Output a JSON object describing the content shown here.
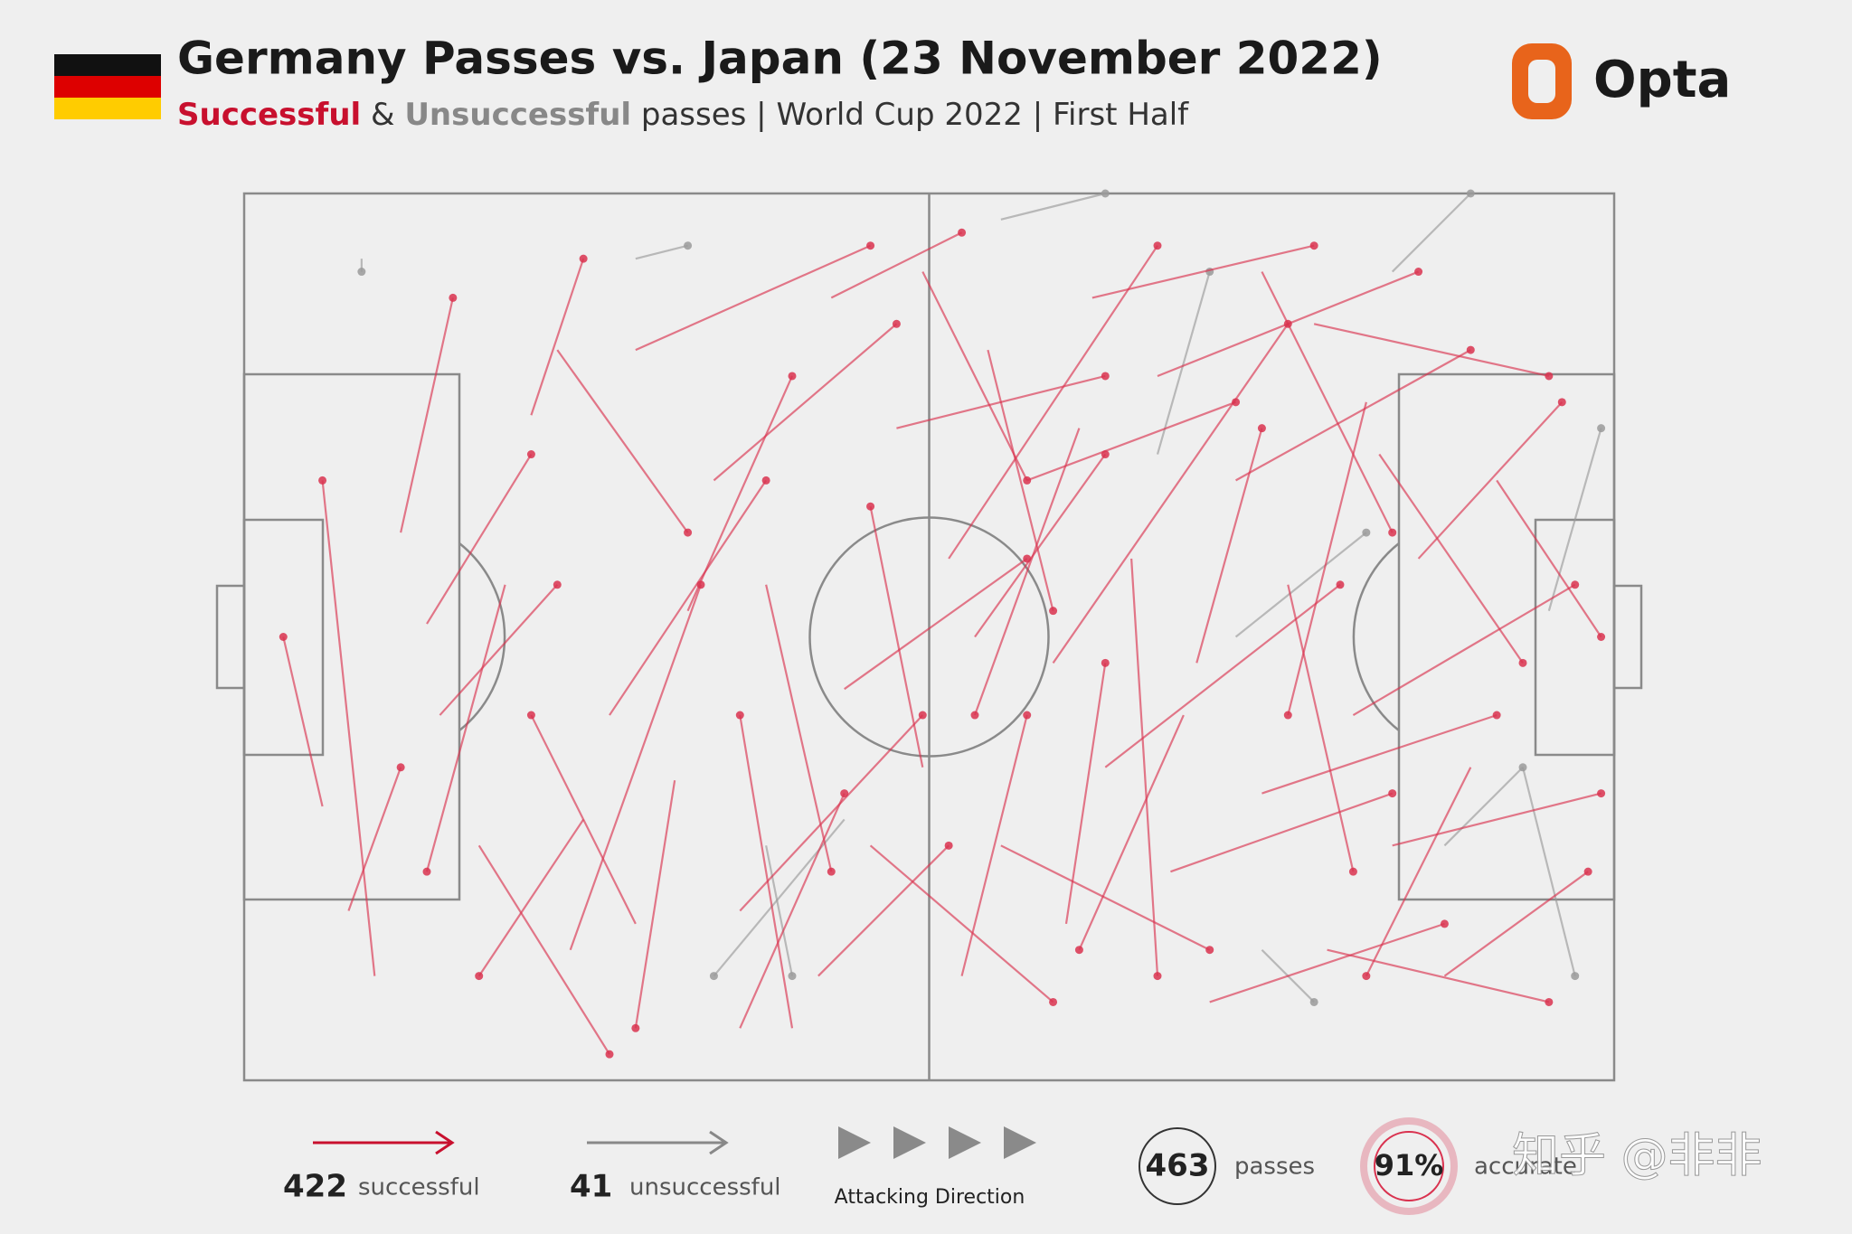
{
  "header": {
    "title": "Germany Passes vs. Japan (23 November 2022)",
    "subtitle_successful": "Successful",
    "subtitle_and": "&",
    "subtitle_unsuccessful": "Unsuccessful",
    "subtitle_rest": "passes | World Cup 2022 | First Half",
    "brand": "Opta"
  },
  "passes": {
    "successful_color": "#d9324f",
    "unsuccessful_color": "#9a9a9a",
    "successful": [
      [
        6,
        47,
        3,
        34
      ],
      [
        8,
        55,
        12,
        44
      ],
      [
        12,
        26,
        16,
        8
      ],
      [
        14,
        33,
        22,
        20
      ],
      [
        10,
        60,
        6,
        22
      ],
      [
        18,
        50,
        28,
        66
      ],
      [
        22,
        17,
        26,
        5
      ],
      [
        25,
        58,
        35,
        30
      ],
      [
        28,
        40,
        40,
        22
      ],
      [
        30,
        12,
        48,
        4
      ],
      [
        33,
        45,
        30,
        64
      ],
      [
        36,
        22,
        50,
        10
      ],
      [
        38,
        55,
        52,
        40
      ],
      [
        40,
        30,
        45,
        52
      ],
      [
        42,
        64,
        38,
        40
      ],
      [
        45,
        8,
        55,
        3
      ],
      [
        46,
        38,
        60,
        28
      ],
      [
        48,
        50,
        62,
        62
      ],
      [
        50,
        18,
        66,
        14
      ],
      [
        52,
        44,
        48,
        24
      ],
      [
        54,
        28,
        70,
        4
      ],
      [
        55,
        60,
        60,
        40
      ],
      [
        57,
        12,
        62,
        32
      ],
      [
        58,
        50,
        74,
        58
      ],
      [
        60,
        22,
        76,
        16
      ],
      [
        62,
        36,
        80,
        10
      ],
      [
        63,
        56,
        66,
        36
      ],
      [
        65,
        8,
        82,
        4
      ],
      [
        66,
        44,
        84,
        30
      ],
      [
        68,
        28,
        70,
        60
      ],
      [
        70,
        14,
        90,
        6
      ],
      [
        71,
        52,
        88,
        46
      ],
      [
        73,
        36,
        78,
        18
      ],
      [
        74,
        62,
        92,
        56
      ],
      [
        76,
        22,
        94,
        12
      ],
      [
        78,
        46,
        96,
        40
      ],
      [
        80,
        30,
        85,
        52
      ],
      [
        82,
        10,
        100,
        14
      ],
      [
        83,
        58,
        100,
        62
      ],
      [
        85,
        40,
        102,
        30
      ],
      [
        87,
        20,
        98,
        36
      ],
      [
        88,
        50,
        104,
        46
      ],
      [
        90,
        28,
        101,
        16
      ],
      [
        92,
        60,
        103,
        52
      ],
      [
        15,
        40,
        24,
        30
      ],
      [
        20,
        30,
        14,
        52
      ],
      [
        26,
        48,
        18,
        60
      ],
      [
        34,
        32,
        42,
        14
      ],
      [
        44,
        60,
        54,
        50
      ],
      [
        56,
        34,
        66,
        20
      ],
      [
        64,
        18,
        56,
        40
      ],
      [
        72,
        40,
        64,
        58
      ],
      [
        86,
        16,
        80,
        40
      ],
      [
        94,
        44,
        86,
        60
      ],
      [
        24,
        12,
        34,
        26
      ],
      [
        38,
        64,
        46,
        46
      ],
      [
        52,
        6,
        60,
        22
      ],
      [
        78,
        6,
        88,
        26
      ],
      [
        96,
        22,
        104,
        34
      ],
      [
        30,
        56,
        22,
        40
      ]
    ],
    "unsuccessful": [
      [
        9,
        5,
        9,
        6
      ],
      [
        30,
        5,
        34,
        4
      ],
      [
        40,
        50,
        42,
        60
      ],
      [
        46,
        48,
        36,
        60
      ],
      [
        58,
        2,
        66,
        0
      ],
      [
        70,
        20,
        74,
        6
      ],
      [
        76,
        34,
        86,
        26
      ],
      [
        78,
        58,
        82,
        62
      ],
      [
        88,
        6,
        94,
        0
      ],
      [
        92,
        50,
        98,
        44
      ],
      [
        98,
        44,
        102,
        60
      ],
      [
        100,
        32,
        104,
        18
      ]
    ]
  },
  "legend": {
    "successful_count": "422",
    "successful_label": "successful",
    "unsuccessful_count": "41",
    "unsuccessful_label": "unsuccessful",
    "direction_label": "Attacking Direction"
  },
  "stats": {
    "passes": "463",
    "passes_label": "passes",
    "accuracy": "91%",
    "accuracy_label": "accurate"
  },
  "watermark": "知乎 @非非"
}
